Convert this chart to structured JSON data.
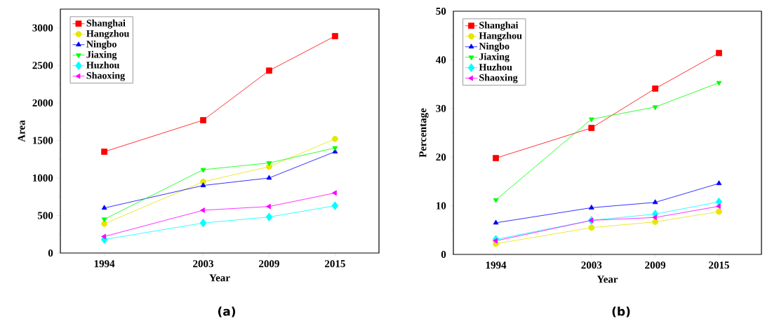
{
  "chart_data": [
    {
      "type": "line",
      "xlabel": "Year",
      "ylabel": "Area",
      "annotations": [
        "(a)"
      ],
      "x": [
        1994,
        2003,
        2009,
        2015
      ],
      "xlim": [
        1990,
        2019
      ],
      "xticks": [
        1994,
        2003,
        2009,
        2015
      ],
      "ylim": [
        0,
        3250
      ],
      "yticks": [
        0,
        500,
        1000,
        1500,
        2000,
        2500,
        3000
      ],
      "legend": "top left",
      "series": [
        {
          "name": "Shanghai",
          "color": "#ff0000",
          "marker": "square",
          "values": [
            1350,
            1770,
            2430,
            2890
          ]
        },
        {
          "name": "Hangzhou",
          "color": "#e6e600",
          "marker": "circle",
          "values": [
            390,
            950,
            1150,
            1520
          ]
        },
        {
          "name": "Ningbo",
          "color": "#0000ff",
          "marker": "triangle",
          "values": [
            600,
            900,
            1000,
            1350
          ]
        },
        {
          "name": "Jiaxing",
          "color": "#00ff00",
          "marker": "triangle-down",
          "values": [
            450,
            1110,
            1200,
            1400
          ]
        },
        {
          "name": "Huzhou",
          "color": "#00ffff",
          "marker": "diamond",
          "values": [
            180,
            400,
            480,
            630
          ]
        },
        {
          "name": "Shaoxing",
          "color": "#ff00ff",
          "marker": "triangle-left",
          "values": [
            220,
            570,
            620,
            800
          ]
        }
      ]
    },
    {
      "type": "line",
      "xlabel": "Year",
      "ylabel": "Percentage",
      "annotations": [
        "(b)"
      ],
      "x": [
        1994,
        2003,
        2009,
        2015
      ],
      "xlim": [
        1990,
        2019
      ],
      "xticks": [
        1994,
        2003,
        2009,
        2015
      ],
      "ylim": [
        0,
        50
      ],
      "yticks": [
        0,
        10,
        20,
        30,
        40,
        50
      ],
      "legend": "top left",
      "series": [
        {
          "name": "Shanghai",
          "color": "#ff0000",
          "marker": "square",
          "values": [
            19.8,
            26.0,
            34.1,
            41.4
          ]
        },
        {
          "name": "Hangzhou",
          "color": "#e6e600",
          "marker": "circle",
          "values": [
            2.2,
            5.5,
            6.7,
            8.8
          ]
        },
        {
          "name": "Ningbo",
          "color": "#0000ff",
          "marker": "triangle",
          "values": [
            6.5,
            9.6,
            10.7,
            14.6
          ]
        },
        {
          "name": "Jiaxing",
          "color": "#00ff00",
          "marker": "triangle-down",
          "values": [
            11.2,
            27.8,
            30.3,
            35.3
          ]
        },
        {
          "name": "Huzhou",
          "color": "#00ffff",
          "marker": "diamond",
          "values": [
            3.1,
            7.0,
            8.3,
            10.8
          ]
        },
        {
          "name": "Shaoxing",
          "color": "#ff00ff",
          "marker": "triangle-left",
          "values": [
            2.8,
            7.0,
            7.6,
            9.9
          ]
        }
      ]
    }
  ]
}
